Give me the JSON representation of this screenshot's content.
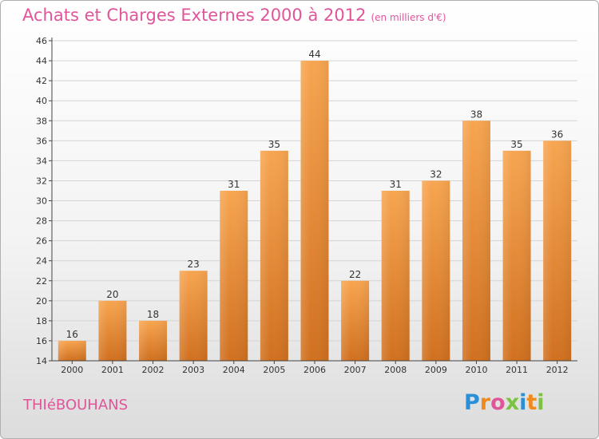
{
  "header": {
    "title": "Achats et Charges Externes 2000 à 2012",
    "subtitle": "(en milliers d'€)"
  },
  "footer": {
    "place": "THIéBOUHANS",
    "logo": "Proxiti"
  },
  "colors": {
    "bar_top": "#f7a550",
    "bar_bottom": "#d0701f",
    "title": "#e0559a"
  },
  "chart_data": {
    "type": "bar",
    "categories": [
      "2000",
      "2001",
      "2002",
      "2003",
      "2004",
      "2005",
      "2006",
      "2007",
      "2008",
      "2009",
      "2010",
      "2011",
      "2012"
    ],
    "values": [
      16,
      20,
      18,
      23,
      31,
      35,
      44,
      22,
      31,
      32,
      38,
      35,
      36
    ],
    "ylim": [
      14,
      46
    ],
    "yticks": [
      14,
      16,
      18,
      20,
      22,
      24,
      26,
      28,
      30,
      32,
      34,
      36,
      38,
      40,
      42,
      44,
      46
    ],
    "grid": true,
    "data_labels": true
  }
}
